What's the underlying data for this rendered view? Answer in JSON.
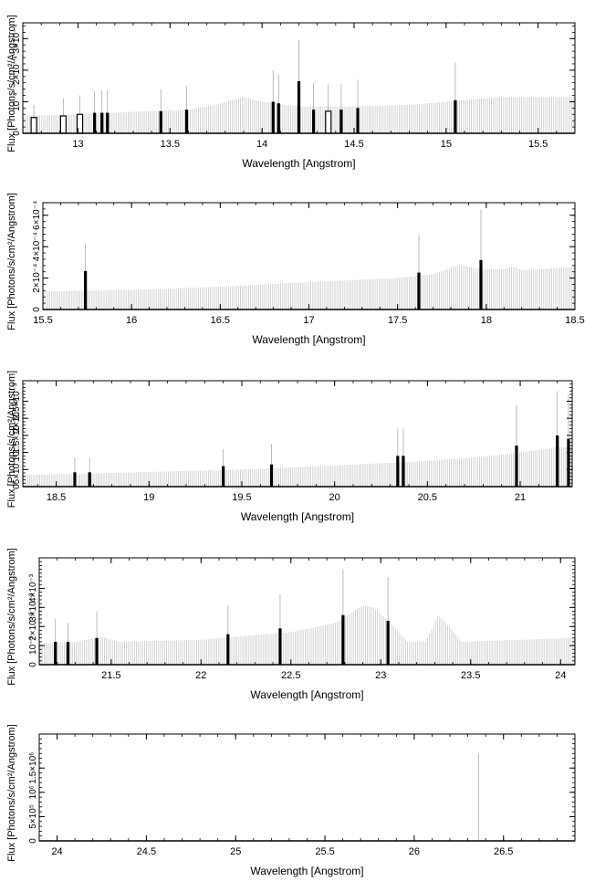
{
  "chart_data": [
    {
      "type": "bar",
      "xlabel": "Wavelength [Angstrom]",
      "ylabel": "Flux [Photons/s/cm²/Angstrom]",
      "xlim": [
        12.7,
        15.7
      ],
      "ylim": [
        0,
        0.00035
      ],
      "xticks": [
        13,
        13.5,
        14,
        14.5,
        15,
        15.5
      ],
      "xtick_labels": [
        "13",
        "13.5",
        "14",
        "14.5",
        "15",
        "15.5"
      ],
      "yticks": [
        0,
        0.0001,
        0.0002,
        0.0003
      ],
      "ytick_labels": [
        "0",
        "10⁻⁴",
        "2×10⁻⁴",
        "3×10⁻⁴"
      ],
      "continuum": [
        [
          12.7,
          5.5e-05
        ],
        [
          13.0,
          6e-05
        ],
        [
          13.3,
          6.8e-05
        ],
        [
          13.6,
          7.5e-05
        ],
        [
          13.75,
          9e-05
        ],
        [
          13.9,
          0.000115
        ],
        [
          14.0,
          0.0001
        ],
        [
          14.2,
          8.5e-05
        ],
        [
          14.5,
          8.5e-05
        ],
        [
          14.8,
          9e-05
        ],
        [
          15.1,
          0.000105
        ],
        [
          15.3,
          0.000115
        ],
        [
          15.7,
          0.000115
        ]
      ],
      "lines": [
        {
          "x": 12.76,
          "value": 5e-05,
          "err": 4e-05,
          "open": true
        },
        {
          "x": 12.92,
          "value": 5.5e-05,
          "err": 5.5e-05,
          "open": true
        },
        {
          "x": 13.01,
          "value": 6e-05,
          "err": 6e-05,
          "open": true
        },
        {
          "x": 13.09,
          "value": 6.5e-05,
          "err": 7e-05,
          "open": false
        },
        {
          "x": 13.13,
          "value": 6.5e-05,
          "err": 7e-05,
          "open": false
        },
        {
          "x": 13.16,
          "value": 6.5e-05,
          "err": 7e-05,
          "open": false
        },
        {
          "x": 13.45,
          "value": 7e-05,
          "err": 7e-05,
          "open": false
        },
        {
          "x": 13.59,
          "value": 7.5e-05,
          "err": 7.5e-05,
          "open": false
        },
        {
          "x": 14.06,
          "value": 0.0001,
          "err": 0.0001,
          "open": false
        },
        {
          "x": 14.09,
          "value": 9.5e-05,
          "err": 9e-05,
          "open": false
        },
        {
          "x": 14.2,
          "value": 0.000165,
          "err": 0.00013,
          "open": false
        },
        {
          "x": 14.28,
          "value": 7.5e-05,
          "err": 8.5e-05,
          "open": false
        },
        {
          "x": 14.36,
          "value": 7e-05,
          "err": 8.5e-05,
          "open": true
        },
        {
          "x": 14.43,
          "value": 7.5e-05,
          "err": 8e-05,
          "open": false
        },
        {
          "x": 14.52,
          "value": 8e-05,
          "err": 9e-05,
          "open": false
        },
        {
          "x": 15.05,
          "value": 0.000105,
          "err": 0.00012,
          "open": false
        }
      ]
    },
    {
      "type": "bar",
      "xlabel": "Wavelength [Angstrom]",
      "ylabel": "Flux [Photons/s/cm²/Angstrom]",
      "xlim": [
        15.5,
        18.5
      ],
      "ylim": [
        0,
        0.00068
      ],
      "xticks": [
        15.5,
        16,
        16.5,
        17,
        17.5,
        18,
        18.5
      ],
      "xtick_labels": [
        "15.5",
        "16",
        "16.5",
        "17",
        "17.5",
        "18",
        "18.5"
      ],
      "yticks": [
        0,
        0.0002,
        0.0004,
        0.0006
      ],
      "ytick_labels": [
        "0",
        "2×10⁻⁴",
        "4×10⁻⁴",
        "6×10⁻⁴"
      ],
      "continuum": [
        [
          15.5,
          0.000115
        ],
        [
          16.0,
          0.000125
        ],
        [
          16.5,
          0.000145
        ],
        [
          17.0,
          0.000175
        ],
        [
          17.5,
          0.0002
        ],
        [
          17.7,
          0.000225
        ],
        [
          17.85,
          0.000285
        ],
        [
          17.95,
          0.00026
        ],
        [
          18.1,
          0.000255
        ],
        [
          18.15,
          0.000275
        ],
        [
          18.2,
          0.00025
        ],
        [
          18.5,
          0.00027
        ]
      ],
      "lines": [
        {
          "x": 15.74,
          "value": 0.000245,
          "err": 0.00017,
          "open": false
        },
        {
          "x": 17.62,
          "value": 0.000235,
          "err": 0.00024,
          "open": false
        },
        {
          "x": 17.97,
          "value": 0.000315,
          "err": 0.00032,
          "open": false
        }
      ]
    },
    {
      "type": "bar",
      "xlabel": "Wavelength [Angstrom]",
      "ylabel": "Flux [Photons/s/cm²/Angstrom]",
      "xlim": [
        18.32,
        21.28
      ],
      "ylim": [
        0,
        0.0031
      ],
      "xticks": [
        18.5,
        19,
        19.5,
        20,
        20.5,
        21
      ],
      "xtick_labels": [
        "18.5",
        "19",
        "19.5",
        "20",
        "20.5",
        "21"
      ],
      "yticks": [
        0,
        0.0005,
        0.001,
        0.0015,
        0.002,
        0.0025
      ],
      "ytick_labels": [
        "0",
        "5×10⁻⁴",
        "10⁻³",
        "1.5×10⁻³",
        "2×10⁻³",
        "2.5×10⁻³"
      ],
      "continuum": [
        [
          18.32,
          0.00035
        ],
        [
          18.6,
          0.00037
        ],
        [
          19.0,
          0.00043
        ],
        [
          19.5,
          0.0005
        ],
        [
          20.0,
          0.00062
        ],
        [
          20.5,
          0.00075
        ],
        [
          20.8,
          0.00088
        ],
        [
          21.0,
          0.001
        ],
        [
          21.2,
          0.00115
        ],
        [
          21.28,
          0.00115
        ]
      ],
      "lines": [
        {
          "x": 18.6,
          "value": 0.00042,
          "err": 0.00043,
          "open": false
        },
        {
          "x": 18.68,
          "value": 0.00042,
          "err": 0.00043,
          "open": false
        },
        {
          "x": 19.4,
          "value": 0.0006,
          "err": 0.0005,
          "open": false
        },
        {
          "x": 19.66,
          "value": 0.00065,
          "err": 0.0006,
          "open": false
        },
        {
          "x": 20.34,
          "value": 0.0009,
          "err": 0.0008,
          "open": false
        },
        {
          "x": 20.37,
          "value": 0.0009,
          "err": 0.0008,
          "open": false
        },
        {
          "x": 20.98,
          "value": 0.0012,
          "err": 0.0012,
          "open": false
        },
        {
          "x": 21.2,
          "value": 0.0015,
          "err": 0.0013,
          "open": false
        },
        {
          "x": 21.26,
          "value": 0.0014,
          "err": 0.0013,
          "open": false
        }
      ]
    },
    {
      "type": "bar",
      "xlabel": "Wavelength [Angstrom]",
      "ylabel": "Flux [Photons/s/cm²/Angstrom]",
      "xlim": [
        21.1,
        24.08
      ],
      "ylim": [
        0,
        0.0056
      ],
      "xticks": [
        21.5,
        22,
        22.5,
        23,
        23.5,
        24
      ],
      "xtick_labels": [
        "21.5",
        "22",
        "22.5",
        "23",
        "23.5",
        "24"
      ],
      "yticks": [
        0,
        0.001,
        0.002,
        0.003,
        0.004
      ],
      "ytick_labels": [
        "0",
        "10⁻³",
        "2×10⁻³",
        "3×10⁻³",
        "4×10⁻³"
      ],
      "continuum": [
        [
          21.1,
          0.0011
        ],
        [
          21.3,
          0.0012
        ],
        [
          21.45,
          0.00145
        ],
        [
          21.55,
          0.0012
        ],
        [
          22.0,
          0.0013
        ],
        [
          22.5,
          0.0017
        ],
        [
          22.75,
          0.0022
        ],
        [
          22.9,
          0.0031
        ],
        [
          22.96,
          0.003
        ],
        [
          23.05,
          0.0022
        ],
        [
          23.15,
          0.0012
        ],
        [
          23.25,
          0.0012
        ],
        [
          23.32,
          0.0026
        ],
        [
          23.38,
          0.002
        ],
        [
          23.45,
          0.0012
        ],
        [
          24.08,
          0.0014
        ]
      ],
      "lines": [
        {
          "x": 21.19,
          "value": 0.0012,
          "err": 0.0012,
          "open": false
        },
        {
          "x": 21.26,
          "value": 0.0012,
          "err": 0.001,
          "open": false
        },
        {
          "x": 21.42,
          "value": 0.0014,
          "err": 0.0014,
          "open": false
        },
        {
          "x": 22.15,
          "value": 0.0016,
          "err": 0.0015,
          "open": false
        },
        {
          "x": 22.44,
          "value": 0.0019,
          "err": 0.0018,
          "open": false
        },
        {
          "x": 22.79,
          "value": 0.0026,
          "err": 0.0024,
          "open": false
        },
        {
          "x": 23.04,
          "value": 0.0023,
          "err": 0.0023,
          "open": false
        }
      ]
    },
    {
      "type": "bar",
      "xlabel": "Wavelength [Angstrom]",
      "ylabel": "Flux [Photons/s/cm²/Angstrom]",
      "xlim": [
        23.9,
        26.9
      ],
      "ylim": [
        0,
        2200000
      ],
      "xticks": [
        24,
        24.5,
        25,
        25.5,
        26,
        26.5
      ],
      "xtick_labels": [
        "24",
        "24.5",
        "25",
        "25.5",
        "26",
        "26.5"
      ],
      "yticks": [
        0,
        500000,
        1000000,
        1500000
      ],
      "ytick_labels": [
        "0",
        "5×10⁵",
        "10⁶",
        "1.5×10⁶"
      ],
      "continuum": [],
      "lines": [
        {
          "x": 26.36,
          "value": 0,
          "err": 1800000,
          "open": false
        }
      ]
    }
  ]
}
